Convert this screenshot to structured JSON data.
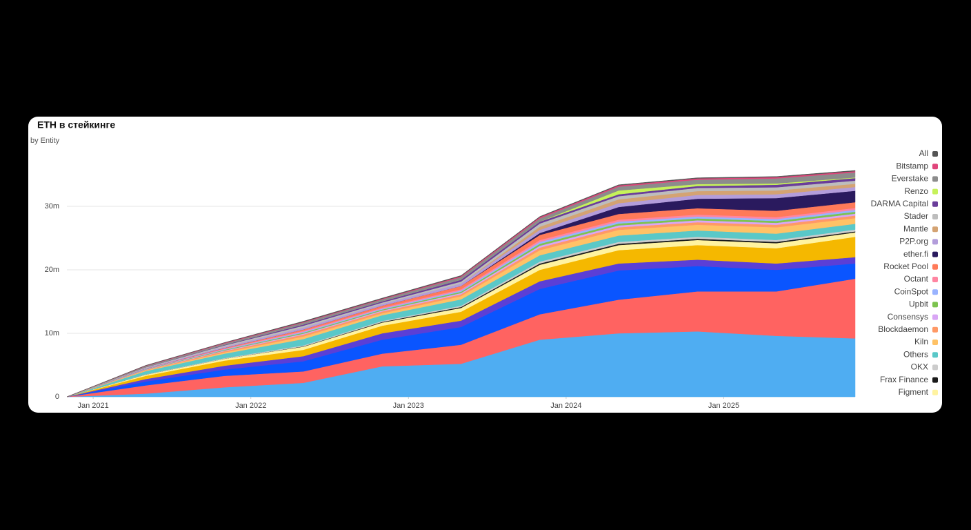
{
  "chart_data": {
    "type": "stacked_area",
    "title": "ETH в стейкинге",
    "subtitle": "by Entity",
    "x": [
      "2020-11",
      "2021-05",
      "2021-11",
      "2022-05",
      "2022-11",
      "2023-05",
      "2023-11",
      "2024-05",
      "2024-11",
      "2025-05",
      "2025-11"
    ],
    "xlim": [
      "2020-11",
      "2025-11"
    ],
    "xticks": [
      {
        "value": "2021-01",
        "label": "Jan 2021"
      },
      {
        "value": "2022-01",
        "label": "Jan 2022"
      },
      {
        "value": "2023-01",
        "label": "Jan 2023"
      },
      {
        "value": "2024-01",
        "label": "Jan 2024"
      },
      {
        "value": "2025-01",
        "label": "Jan 2025"
      }
    ],
    "ylim": [
      0,
      40000000
    ],
    "yticks": [
      0,
      {
        "value": 10000000,
        "label": "10m"
      },
      {
        "value": 20000000,
        "label": "20m"
      },
      {
        "value": 30000000,
        "label": "30m"
      }
    ],
    "grid": true,
    "legend": "right",
    "series": [
      {
        "color": "#4fadf2",
        "values": [
          0,
          500000.0,
          1500000.0,
          2200000.0,
          4800000.0,
          5200000.0,
          9000000.0,
          10000000.0,
          10300000.0,
          9600000.0,
          9200000.0
        ]
      },
      {
        "color": "#ff6361",
        "values": [
          0,
          1300000.0,
          1800000.0,
          1800000.0,
          2000000.0,
          3000000.0,
          4000000.0,
          5300000.0,
          6300000.0,
          7000000.0,
          9400000.0
        ]
      },
      {
        "color": "#0a55ff",
        "values": [
          0,
          600000.0,
          1000000.0,
          1600000.0,
          2200000.0,
          2800000.0,
          4000000.0,
          4600000.0,
          4000000.0,
          3400000.0,
          2400000.0
        ]
      },
      {
        "color": "#5b3fd6",
        "values": [
          0,
          400000.0,
          600000.0,
          800000.0,
          1000000.0,
          1000000.0,
          1200000.0,
          1100000.0,
          1000000.0,
          1000000.0,
          1000000.0
        ]
      },
      {
        "color": "#f5b800",
        "values": [
          0,
          500000.0,
          800000.0,
          1000000.0,
          1200000.0,
          1400000.0,
          1800000.0,
          2100000.0,
          2300000.0,
          2400000.0,
          3200000.0
        ]
      },
      {
        "name": "Figment",
        "color": "#fff3a0",
        "values": [
          0,
          200000.0,
          300000.0,
          500000.0,
          500000.0,
          600000.0,
          800000.0,
          800000.0,
          800000.0,
          800000.0,
          700000.0
        ]
      },
      {
        "name": "Frax Finance",
        "color": "#1a1a1a",
        "values": [
          0,
          0,
          0,
          50000.0,
          100000.0,
          150000.0,
          200000.0,
          200000.0,
          200000.0,
          200000.0,
          150000.0
        ]
      },
      {
        "name": "OKX",
        "color": "#cccccc",
        "values": [
          0,
          50000.0,
          100000.0,
          150000.0,
          150000.0,
          200000.0,
          300000.0,
          300000.0,
          300000.0,
          300000.0,
          300000.0
        ]
      },
      {
        "name": "Others",
        "color": "#5ac8c8",
        "values": [
          0,
          500000.0,
          700000.0,
          1000000.0,
          900000.0,
          1000000.0,
          1000000.0,
          1000000.0,
          1000000.0,
          1000000.0,
          900000.0
        ]
      },
      {
        "name": "Kiln",
        "color": "#ffc266",
        "values": [
          0,
          100000.0,
          200000.0,
          400000.0,
          300000.0,
          500000.0,
          800000.0,
          900000.0,
          900000.0,
          1000000.0,
          900000.0
        ]
      },
      {
        "name": "Blockdaemon",
        "color": "#ff9966",
        "values": [
          0,
          100000.0,
          200000.0,
          300000.0,
          300000.0,
          300000.0,
          400000.0,
          400000.0,
          400000.0,
          400000.0,
          400000.0
        ]
      },
      {
        "name": "Consensys",
        "color": "#d9a6f5",
        "values": [
          0,
          50000.0,
          100000.0,
          150000.0,
          150000.0,
          200000.0,
          300000.0,
          300000.0,
          300000.0,
          300000.0,
          300000.0
        ]
      },
      {
        "name": "Upbit",
        "color": "#7cc34f",
        "values": [
          0,
          50000.0,
          100000.0,
          150000.0,
          150000.0,
          200000.0,
          300000.0,
          300000.0,
          300000.0,
          300000.0,
          300000.0
        ]
      },
      {
        "name": "CoinSpot",
        "color": "#99b3ff",
        "values": [
          0,
          50000.0,
          100000.0,
          150000.0,
          150000.0,
          200000.0,
          300000.0,
          300000.0,
          300000.0,
          300000.0,
          300000.0
        ]
      },
      {
        "name": "Octant",
        "color": "#ff85a1",
        "values": [
          0,
          50000.0,
          100000.0,
          150000.0,
          150000.0,
          200000.0,
          300000.0,
          300000.0,
          300000.0,
          300000.0,
          300000.0
        ]
      },
      {
        "name": "Rocket Pool",
        "color": "#ff7a59",
        "values": [
          0,
          0,
          100000.0,
          200000.0,
          300000.0,
          500000.0,
          800000.0,
          900000.0,
          1000000.0,
          1000000.0,
          900000.0
        ]
      },
      {
        "name": "ether.fi",
        "color": "#2a1a5e",
        "values": [
          0,
          0,
          0,
          0,
          0,
          0,
          300000.0,
          1100000.0,
          1500000.0,
          2000000.0,
          1800000.0
        ]
      },
      {
        "name": "P2P.org",
        "color": "#b39ddb",
        "values": [
          0,
          100000.0,
          200000.0,
          300000.0,
          300000.0,
          400000.0,
          500000.0,
          600000.0,
          600000.0,
          600000.0,
          600000.0
        ]
      },
      {
        "name": "Mantle",
        "color": "#d4a373",
        "values": [
          0,
          0,
          0,
          0,
          0,
          0,
          500000.0,
          600000.0,
          600000.0,
          600000.0,
          500000.0
        ]
      },
      {
        "name": "Stader",
        "color": "#bdbdbd",
        "values": [
          0,
          100000.0,
          200000.0,
          300000.0,
          200000.0,
          300000.0,
          500000.0,
          500000.0,
          500000.0,
          500000.0,
          500000.0
        ]
      },
      {
        "name": "DARMA Capital",
        "color": "#6a3d9a",
        "values": [
          0,
          50000.0,
          100000.0,
          200000.0,
          200000.0,
          300000.0,
          300000.0,
          300000.0,
          300000.0,
          400000.0,
          400000.0
        ]
      },
      {
        "name": "Renzo",
        "color": "#c6f25a",
        "values": [
          0,
          0,
          0,
          0,
          0,
          0,
          0,
          600000.0,
          300000.0,
          200000.0,
          100000.0
        ]
      },
      {
        "name": "Everstake",
        "color": "#8c8c8c",
        "values": [
          0,
          150000.0,
          200000.0,
          300000.0,
          300000.0,
          400000.0,
          500000.0,
          600000.0,
          700000.0,
          800000.0,
          800000.0
        ]
      },
      {
        "name": "Bitstamp",
        "color": "#e0457b",
        "values": [
          0,
          50000.0,
          100000.0,
          100000.0,
          100000.0,
          150000.0,
          200000.0,
          200000.0,
          200000.0,
          200000.0,
          200000.0
        ]
      },
      {
        "name": "All",
        "color": "#555555",
        "values": [
          0,
          50000.0,
          50000.0,
          100000.0,
          100000.0,
          100000.0,
          100000.0,
          100000.0,
          100000.0,
          100000.0,
          100000.0
        ]
      }
    ]
  }
}
